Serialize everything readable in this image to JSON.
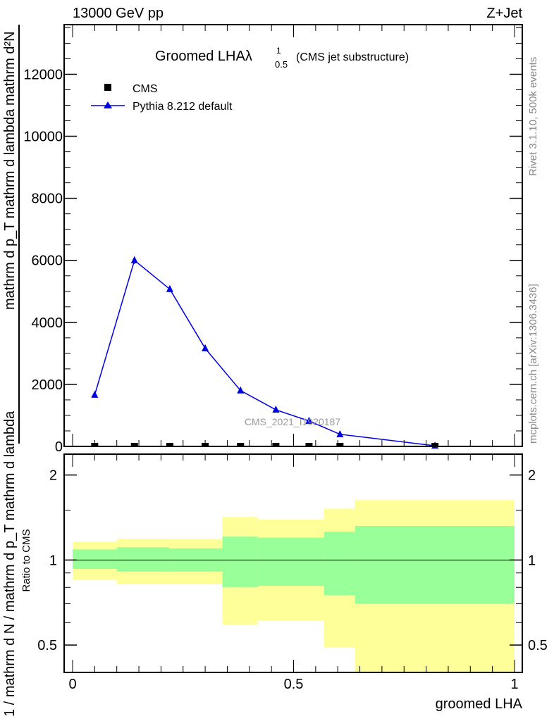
{
  "header": {
    "left": "13000 GeV pp",
    "right": "Z+Jet"
  },
  "side_labels": {
    "rivet": "Rivet 3.1.10,  500k events",
    "mcplots": "mcplots.cern.ch [arXiv:1306.3436]"
  },
  "watermark": "CMS_2021_I1920187",
  "chart_data": [
    {
      "type": "line",
      "title": "Groomed LHA",
      "title_symbol": "λ",
      "title_sup": "1",
      "title_sub": "0.5",
      "title_suffix": "(CMS jet substructure)",
      "ylabel_num": "mathrm d²N",
      "ylabel_den": "mathrm d p_T mathrm d lambda",
      "ylabel_overlay": "1 / mathrm d N / mathrm d p_T mathrm d lambda",
      "xlim": [
        -0.03,
        1.02
      ],
      "ylim": [
        0,
        13600
      ],
      "yticks": [
        0,
        2000,
        4000,
        6000,
        8000,
        10000,
        12000
      ],
      "ytick_labels": [
        "0",
        "2000",
        "4000",
        "6000",
        "8000",
        "10000",
        "12000"
      ],
      "legend_position": "top-left",
      "series": [
        {
          "name": "CMS",
          "marker": "square",
          "color": "#000000",
          "x": [
            0.05,
            0.14,
            0.22,
            0.3,
            0.38,
            0.46,
            0.535,
            0.605,
            0.82
          ],
          "y": [
            0,
            0,
            0,
            0,
            0,
            0,
            0,
            0,
            0
          ]
        },
        {
          "name": "Pythia 8.212 default",
          "marker": "triangle",
          "color": "#0000dd",
          "x": [
            0.05,
            0.14,
            0.22,
            0.3,
            0.38,
            0.46,
            0.535,
            0.605,
            0.82
          ],
          "y": [
            1660,
            6000,
            5070,
            3160,
            1800,
            1180,
            820,
            390,
            20
          ],
          "yerr": [
            40,
            120,
            100,
            60,
            40,
            30,
            25,
            15,
            5
          ]
        }
      ]
    },
    {
      "type": "area",
      "ylabel": "Ratio to CMS",
      "xlabel": "groomed LHA",
      "yscale": "log",
      "ylim": [
        0.4,
        2.37
      ],
      "yticks": [
        0.5,
        1,
        2
      ],
      "ytick_labels": [
        "0.5",
        "1",
        "2"
      ],
      "xticks": [
        0,
        0.5,
        1
      ],
      "xtick_labels": [
        "0",
        "0.5",
        "1"
      ],
      "bins": [
        0,
        0.1,
        0.218,
        0.339,
        0.419,
        0.569,
        0.639,
        1.0
      ],
      "yellow_band": {
        "color": "#ffff99",
        "upper": [
          1.16,
          1.19,
          1.19,
          1.42,
          1.39,
          1.52,
          1.63
        ],
        "lower": [
          0.85,
          0.82,
          0.82,
          0.59,
          0.61,
          0.49,
          0.35
        ]
      },
      "green_band": {
        "color": "#99ff99",
        "upper": [
          1.09,
          1.11,
          1.1,
          1.21,
          1.2,
          1.26,
          1.32
        ],
        "lower": [
          0.93,
          0.91,
          0.91,
          0.8,
          0.81,
          0.75,
          0.7
        ]
      },
      "reference": 1
    }
  ]
}
